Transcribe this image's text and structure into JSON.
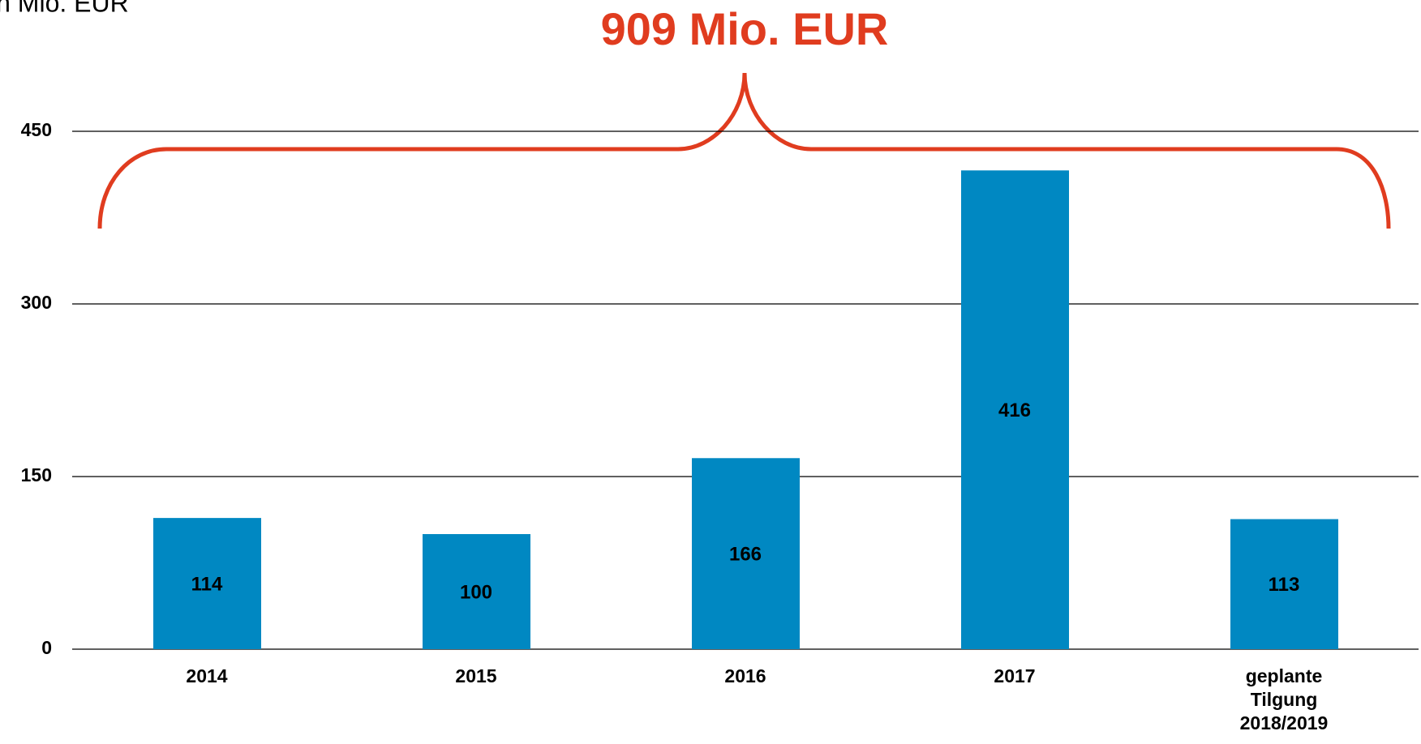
{
  "chart_data": {
    "type": "bar",
    "y_axis_label": "in Mio. EUR",
    "annotation": "909 Mio. EUR",
    "categories": [
      "2014",
      "2015",
      "2016",
      "2017",
      "geplante Tilgung 2018/2019"
    ],
    "values": [
      114,
      100,
      166,
      416,
      113
    ],
    "color": "#0088c2",
    "annotation_color": "#e03c1f",
    "ylim": [
      0,
      450
    ],
    "yticks": [
      0,
      150,
      300,
      450
    ],
    "grid": true
  }
}
